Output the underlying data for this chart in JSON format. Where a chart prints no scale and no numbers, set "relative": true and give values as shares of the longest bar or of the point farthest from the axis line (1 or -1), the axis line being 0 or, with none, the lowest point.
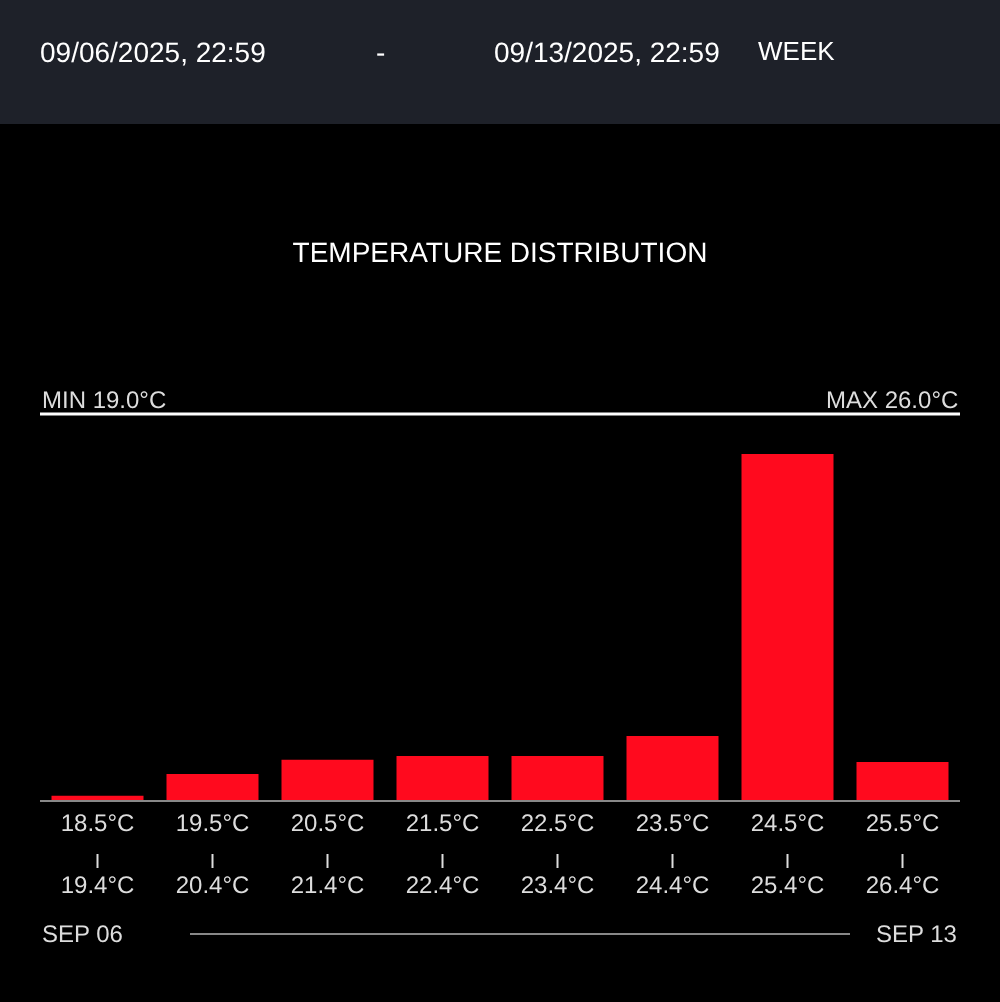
{
  "chart_data": {
    "type": "bar",
    "title": "TEMPERATURE DISTRIBUTION",
    "relative": true,
    "categories": [
      "18.5°C\n19.4°C",
      "19.5°C\n20.4°C",
      "20.5°C\n21.4°C",
      "21.5°C\n22.4°C",
      "22.5°C\n23.4°C",
      "23.5°C\n24.4°C",
      "24.5°C\n25.4°C",
      "25.5°C\n26.4°C"
    ],
    "values": [
      0.012,
      0.075,
      0.116,
      0.127,
      0.127,
      0.185,
      1,
      0.11
    ],
    "color": "#ff0a1e",
    "grid": false,
    "legend": false,
    "annotations": [
      "09/06/2025, 22:59",
      "-",
      "09/13/2025, 22:59",
      "WEEK",
      "MIN 19.0°C",
      "MAX 26.0°C",
      "SEP 06",
      "SEP 13"
    ]
  }
}
